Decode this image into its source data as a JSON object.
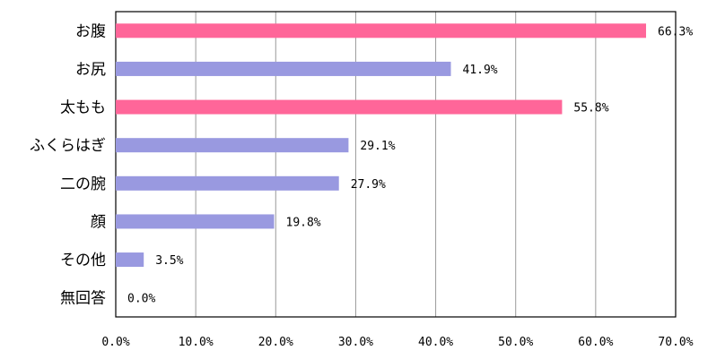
{
  "chart_data": {
    "type": "bar",
    "orientation": "horizontal",
    "title": "",
    "xlabel": "",
    "ylabel": "",
    "categories": [
      "お腹",
      "お尻",
      "太もも",
      "ふくらはぎ",
      "二の腕",
      "顔",
      "その他",
      "無回答"
    ],
    "values": [
      66.3,
      41.9,
      55.8,
      29.1,
      27.9,
      19.8,
      3.5,
      0.0
    ],
    "value_labels": [
      "66.3%",
      "41.9%",
      "55.8%",
      "29.1%",
      "27.9%",
      "19.8%",
      "3.5%",
      "0.0%"
    ],
    "bar_colors": [
      "#ff6699",
      "#9999e0",
      "#ff6699",
      "#9999e0",
      "#9999e0",
      "#9999e0",
      "#9999e0",
      "#9999e0"
    ],
    "xlim": [
      0,
      70
    ],
    "x_ticks": [
      0,
      10,
      20,
      30,
      40,
      50,
      60,
      70
    ],
    "x_tick_labels": [
      "0.0%",
      "10.0%",
      "20.0%",
      "30.0%",
      "40.0%",
      "50.0%",
      "60.0%",
      "70.0%"
    ],
    "grid": true,
    "legend": "none"
  }
}
